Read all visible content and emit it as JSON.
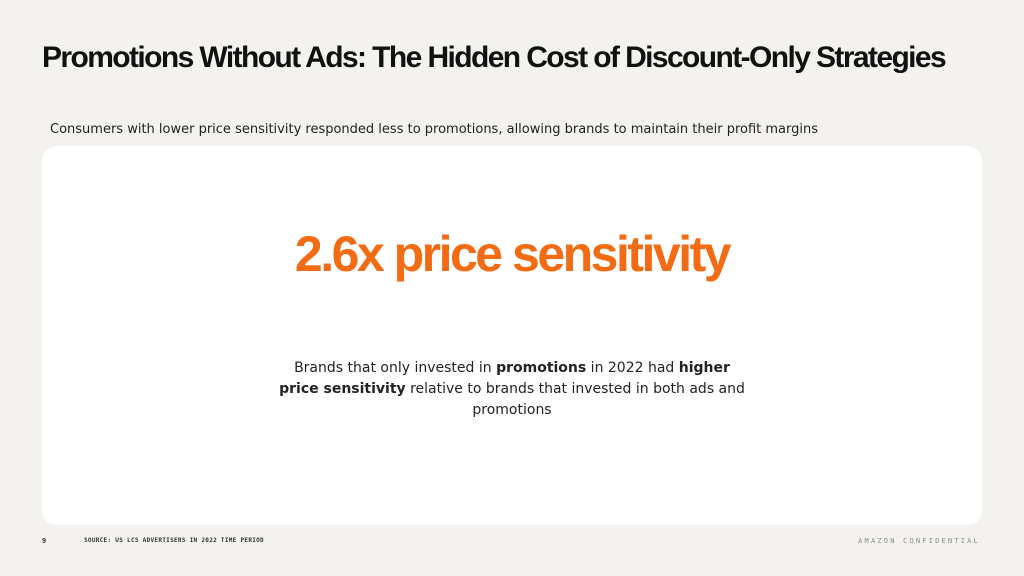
{
  "slide": {
    "title": "Promotions Without Ads: The Hidden Cost of Discount-Only Strategies",
    "subtitle": "Consumers with lower price sensitivity responded less to promotions, allowing brands to maintain their profit margins"
  },
  "stat": {
    "headline": "2.6x price sensitivity",
    "body": {
      "part1": "Brands that only invested in ",
      "bold1": "promotions",
      "part2": " in 2022 had ",
      "bold2": "higher price sensitivity",
      "part3": " relative to brands that invested in both ads and promotions"
    }
  },
  "footer": {
    "page_number": "9",
    "source": "SOURCE: US LCS ADVERTISERS IN 2022 TIME PERIOD",
    "confidential": "AMAZON CONFIDENTIAL"
  },
  "colors": {
    "background": "#f3f2ee",
    "card": "#ffffff",
    "accent": "#f36b12",
    "text": "#111111"
  }
}
